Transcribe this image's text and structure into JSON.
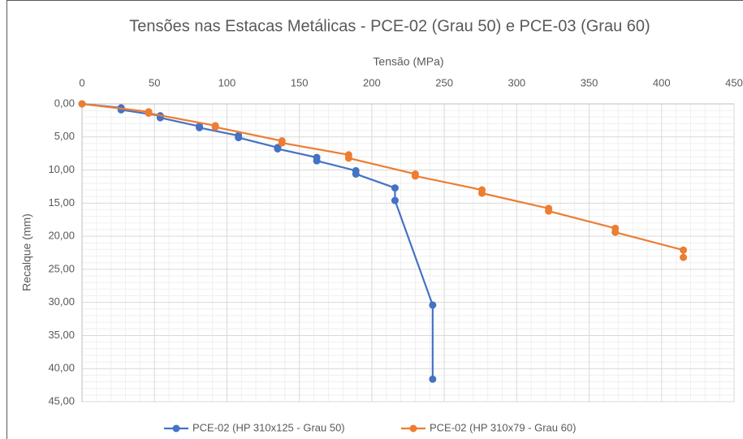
{
  "chart_data": {
    "type": "scatter_line",
    "title": "Tensões nas Estacas Metálicas - PCE-02 (Grau 50) e PCE-03 (Grau 60)",
    "x_label": "Tensão (MPa)",
    "y_label": "Recalque (mm)",
    "xlim": [
      0,
      450
    ],
    "xticks": [
      0,
      50,
      100,
      150,
      200,
      250,
      300,
      350,
      400,
      450
    ],
    "ylim": [
      0,
      45
    ],
    "y_reversed": true,
    "x_axis_position": "top",
    "yticks": [
      {
        "value": 0,
        "label": "0,00"
      },
      {
        "value": 5,
        "label": "5,00"
      },
      {
        "value": 10,
        "label": "10,00"
      },
      {
        "value": 15,
        "label": "15,00"
      },
      {
        "value": 20,
        "label": "20,00"
      },
      {
        "value": 25,
        "label": "25,00"
      },
      {
        "value": 30,
        "label": "30,00"
      },
      {
        "value": 35,
        "label": "35,00"
      },
      {
        "value": 40,
        "label": "40,00"
      },
      {
        "value": 45,
        "label": "45,00"
      }
    ],
    "grid": true,
    "minor_grid": true,
    "legend": "bottom",
    "series": [
      {
        "name": "PCE-02 (HP 310x125 - Grau 50)",
        "color": "#4472c4",
        "x": [
          0,
          27,
          27,
          54,
          54,
          81,
          81,
          108,
          108,
          135,
          135,
          162,
          162,
          189,
          189,
          216,
          216,
          242,
          242
        ],
        "values": [
          0,
          0.6,
          0.9,
          1.8,
          2.1,
          3.4,
          3.6,
          4.8,
          5.1,
          6.6,
          6.8,
          8.1,
          8.6,
          10.1,
          10.6,
          12.7,
          14.6,
          30.4,
          41.6
        ]
      },
      {
        "name": "PCE-02 (HP 310x79 - Grau 60)",
        "color": "#ed7d31",
        "x": [
          0,
          46,
          46,
          92,
          92,
          138,
          138,
          184,
          184,
          230,
          230,
          276,
          276,
          322,
          322,
          368,
          368,
          415,
          415
        ],
        "values": [
          0,
          1.2,
          1.4,
          3.3,
          3.5,
          5.6,
          5.9,
          7.7,
          8.2,
          10.6,
          10.9,
          13.0,
          13.5,
          15.8,
          16.2,
          18.8,
          19.4,
          22.1,
          23.2
        ]
      }
    ]
  }
}
